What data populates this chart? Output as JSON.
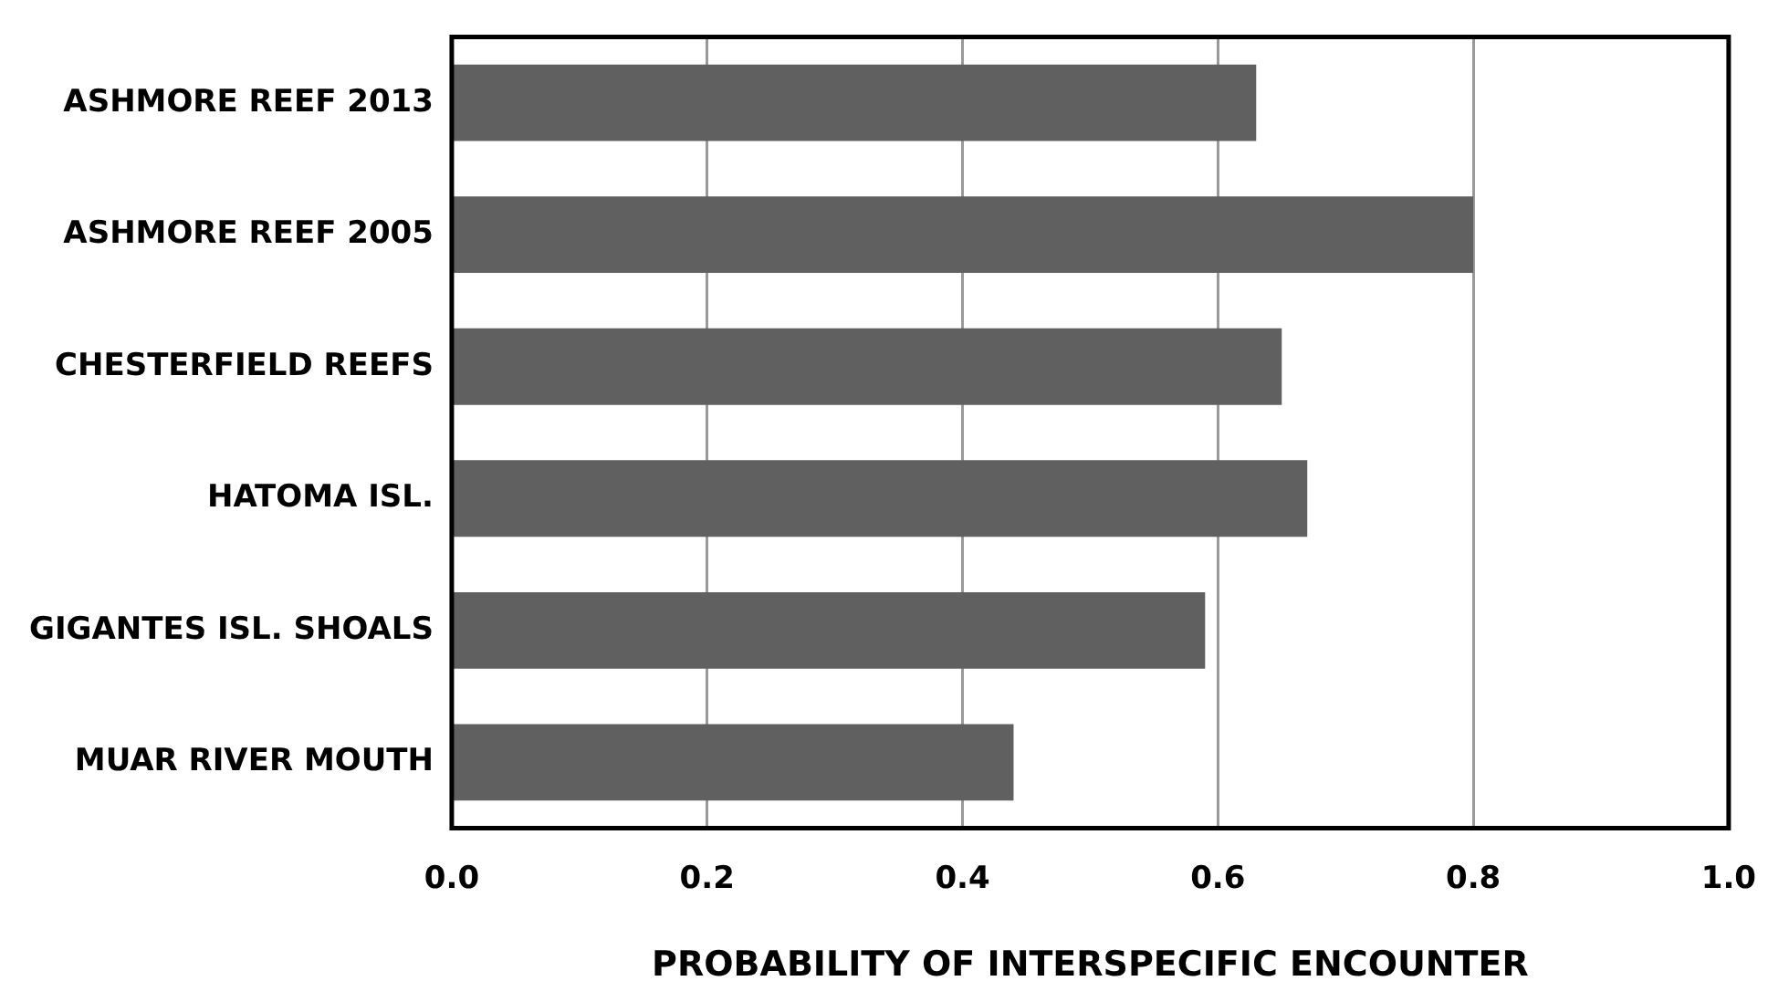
{
  "chart_data": {
    "type": "bar",
    "orientation": "horizontal",
    "xlabel": "PROBABILITY OF INTERSPECIFIC ENCOUNTER",
    "categories": [
      "ASHMORE REEF 2013",
      "ASHMORE REEF 2005",
      "CHESTERFIELD REEFS",
      "HATOMA ISL.",
      "GIGANTES ISL. SHOALS",
      "MUAR RIVER MOUTH"
    ],
    "values": [
      0.63,
      0.8,
      0.65,
      0.67,
      0.59,
      0.44
    ],
    "color": "#606060",
    "xlim": [
      0,
      1
    ],
    "xticks": [
      {
        "value": 0,
        "label": "0.0"
      },
      {
        "value": 0.2,
        "label": "0.2"
      },
      {
        "value": 0.4,
        "label": "0.4"
      },
      {
        "value": 0.6,
        "label": "0.6"
      },
      {
        "value": 0.8,
        "label": "0.8"
      },
      {
        "value": 1,
        "label": "1.0"
      }
    ],
    "grid": "x",
    "legend": false
  }
}
